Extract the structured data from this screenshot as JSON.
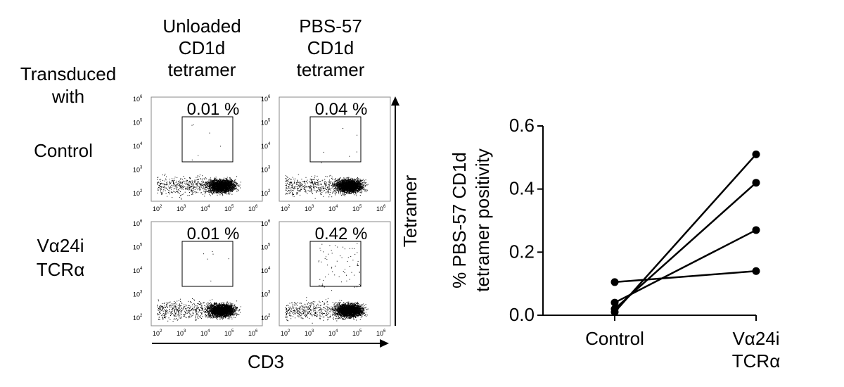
{
  "flow": {
    "column_headers": [
      [
        "Unloaded",
        "CD1d",
        "tetramer"
      ],
      [
        "PBS-57",
        "CD1d",
        "tetramer"
      ]
    ],
    "row_header": [
      "Transduced",
      "with"
    ],
    "rows": [
      {
        "label": [
          "Control"
        ],
        "percentages": [
          "0.01 %",
          "0.04 %"
        ]
      },
      {
        "label": [
          "Vα24i",
          "TCRα"
        ],
        "percentages": [
          "0.01 %",
          "0.42 %"
        ]
      }
    ],
    "x_axis_label": "CD3",
    "y_axis_label": "Tetramer",
    "tick_base": "10",
    "tick_exponents": [
      "2",
      "3",
      "4",
      "5",
      "6"
    ]
  },
  "chart_data": {
    "type": "scatter",
    "categories": [
      "Control",
      "Vα24i TCRα"
    ],
    "category_labels": [
      [
        "Control"
      ],
      [
        "Vα24i",
        "TCRα"
      ]
    ],
    "ylabel": [
      "% PBS-57 CD1d",
      "tetramer positivity"
    ],
    "ylim": [
      0,
      0.6
    ],
    "yticks": [
      "0.0",
      "0.2",
      "0.4",
      "0.6"
    ],
    "paired_series": [
      {
        "values": [
          0.105,
          0.14
        ]
      },
      {
        "values": [
          0.04,
          0.27
        ]
      },
      {
        "values": [
          0.02,
          0.42
        ]
      },
      {
        "values": [
          0.01,
          0.51
        ]
      }
    ]
  }
}
